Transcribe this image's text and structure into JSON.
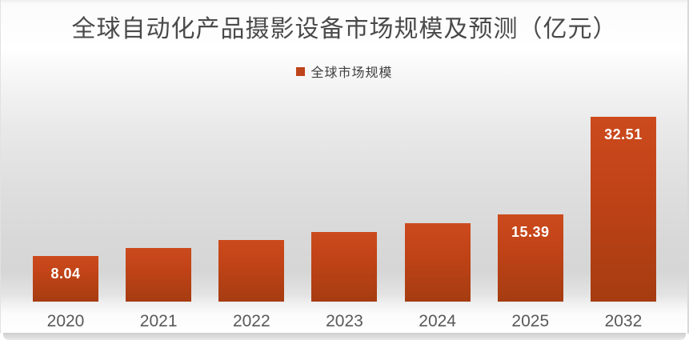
{
  "chart_data": {
    "type": "bar",
    "title": "全球自动化产品摄影设备市场规模及预测（亿元）",
    "legend": [
      {
        "label": "全球市场规模",
        "color": "#be441b"
      }
    ],
    "legend_position": "top",
    "categories": [
      "2020",
      "2021",
      "2022",
      "2023",
      "2024",
      "2025",
      "2032"
    ],
    "series": [
      {
        "name": "全球市场规模",
        "values": [
          8.04,
          9.4,
          10.8,
          12.2,
          13.8,
          15.39,
          32.51
        ],
        "data_labels": [
          "8.04",
          "",
          "",
          "",
          "",
          "15.39",
          "32.51"
        ]
      }
    ],
    "xlabel": "",
    "ylabel": "",
    "ylim": [
      0,
      35
    ],
    "grid": false,
    "colors": {
      "bar_top": "#cc4a1d",
      "bar_bottom": "#a63c11",
      "data_label": "#ffffff",
      "axis_label": "#595959",
      "title": "#4a4a4a"
    }
  }
}
